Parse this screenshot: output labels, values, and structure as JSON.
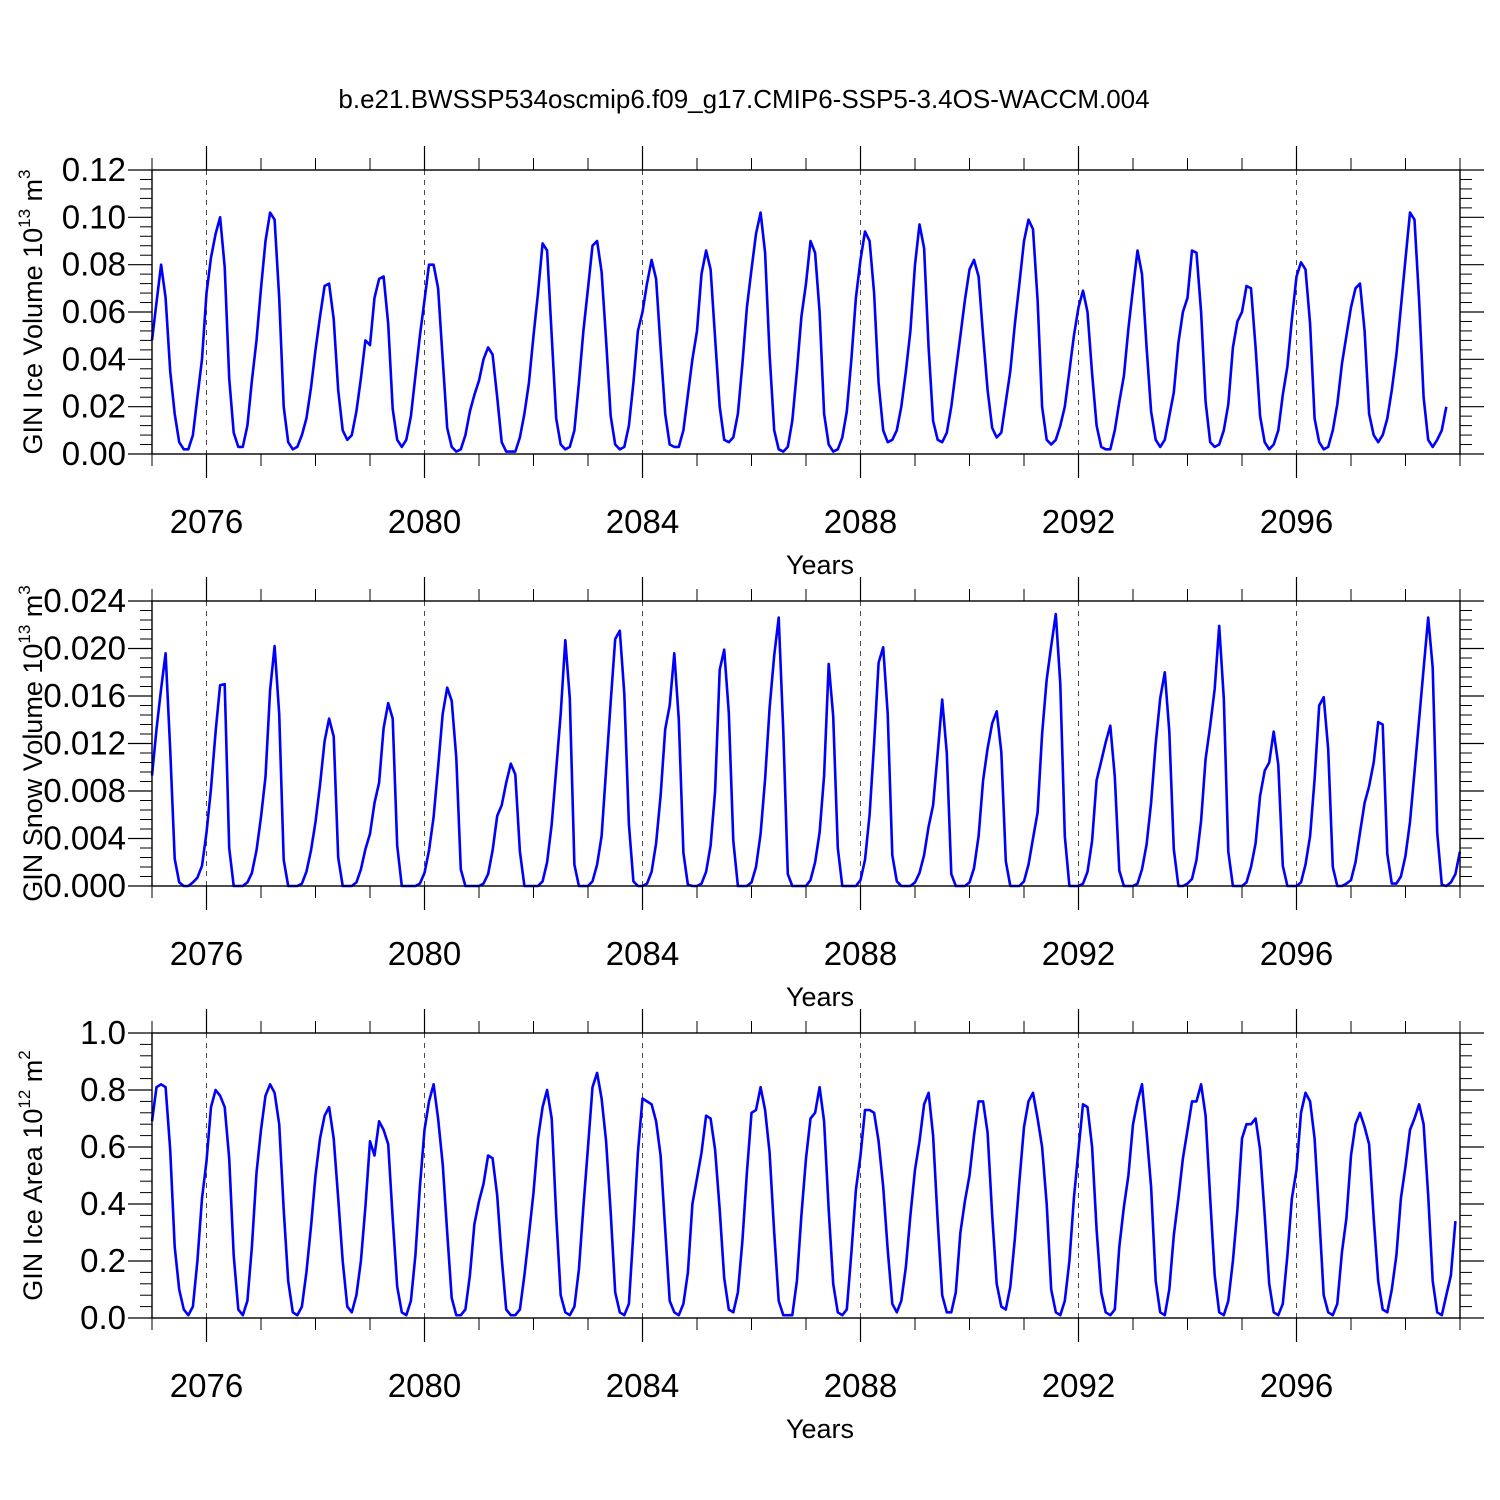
{
  "figure": {
    "title": "b.e21.BWSSP534oscmip6.f09_g17.CMIP6-SSP5-3.4OS-WACCM.004",
    "line_color": "#0000ff",
    "grid_color": "#000000"
  },
  "chart_data": [
    {
      "type": "line",
      "xlabel": "Years",
      "ylabel": {
        "base": "GIN Ice Volume 10",
        "exp1": "13",
        "mid": " m",
        "exp2": "3"
      },
      "xlim": [
        2075,
        2099
      ],
      "ylim": [
        0,
        0.12
      ],
      "yticks": [
        "0.00",
        "0.02",
        "0.04",
        "0.06",
        "0.08",
        "0.10",
        "0.12"
      ],
      "xticks": [
        "2076",
        "2080",
        "2084",
        "2088",
        "2092",
        "2096"
      ],
      "grid_x": [
        2076,
        2080,
        2084,
        2088,
        2092,
        2096
      ],
      "series": [
        {
          "x_start": 2075.0,
          "x_step": 0.08333,
          "values": [
            0.048,
            0.064,
            0.08,
            0.066,
            0.035,
            0.017,
            0.005,
            0.002,
            0.002,
            0.008,
            0.024,
            0.04,
            0.068,
            0.083,
            0.093,
            0.1,
            0.079,
            0.032,
            0.009,
            0.003,
            0.003,
            0.012,
            0.031,
            0.048,
            0.07,
            0.09,
            0.102,
            0.099,
            0.066,
            0.02,
            0.005,
            0.002,
            0.003,
            0.008,
            0.015,
            0.028,
            0.044,
            0.058,
            0.071,
            0.072,
            0.057,
            0.027,
            0.01,
            0.006,
            0.008,
            0.018,
            0.032,
            0.048,
            0.046,
            0.066,
            0.074,
            0.075,
            0.055,
            0.019,
            0.006,
            0.003,
            0.006,
            0.016,
            0.033,
            0.05,
            0.065,
            0.08,
            0.08,
            0.07,
            0.04,
            0.011,
            0.003,
            0.001,
            0.002,
            0.008,
            0.018,
            0.025,
            0.031,
            0.04,
            0.045,
            0.042,
            0.024,
            0.005,
            0.001,
            0.001,
            0.001,
            0.007,
            0.017,
            0.03,
            0.05,
            0.068,
            0.089,
            0.086,
            0.05,
            0.015,
            0.004,
            0.002,
            0.003,
            0.01,
            0.03,
            0.052,
            0.07,
            0.088,
            0.09,
            0.077,
            0.048,
            0.016,
            0.004,
            0.002,
            0.003,
            0.012,
            0.03,
            0.052,
            0.06,
            0.072,
            0.082,
            0.074,
            0.045,
            0.017,
            0.004,
            0.003,
            0.003,
            0.01,
            0.025,
            0.04,
            0.052,
            0.076,
            0.086,
            0.078,
            0.049,
            0.02,
            0.006,
            0.005,
            0.007,
            0.017,
            0.038,
            0.062,
            0.078,
            0.093,
            0.102,
            0.085,
            0.042,
            0.01,
            0.002,
            0.001,
            0.003,
            0.014,
            0.035,
            0.058,
            0.072,
            0.09,
            0.085,
            0.06,
            0.017,
            0.004,
            0.001,
            0.002,
            0.007,
            0.018,
            0.04,
            0.066,
            0.082,
            0.094,
            0.09,
            0.068,
            0.03,
            0.01,
            0.005,
            0.006,
            0.01,
            0.02,
            0.035,
            0.052,
            0.08,
            0.097,
            0.087,
            0.045,
            0.014,
            0.006,
            0.005,
            0.009,
            0.02,
            0.035,
            0.05,
            0.065,
            0.078,
            0.082,
            0.075,
            0.05,
            0.027,
            0.011,
            0.007,
            0.009,
            0.022,
            0.035,
            0.055,
            0.072,
            0.09,
            0.099,
            0.095,
            0.065,
            0.02,
            0.006,
            0.004,
            0.006,
            0.012,
            0.02,
            0.035,
            0.05,
            0.062,
            0.069,
            0.06,
            0.034,
            0.012,
            0.003,
            0.002,
            0.002,
            0.01,
            0.022,
            0.033,
            0.053,
            0.07,
            0.086,
            0.076,
            0.045,
            0.018,
            0.006,
            0.003,
            0.006,
            0.016,
            0.026,
            0.047,
            0.06,
            0.066,
            0.086,
            0.085,
            0.06,
            0.022,
            0.005,
            0.003,
            0.004,
            0.01,
            0.021,
            0.045,
            0.056,
            0.06,
            0.071,
            0.07,
            0.045,
            0.016,
            0.005,
            0.002,
            0.004,
            0.01,
            0.025,
            0.037,
            0.057,
            0.075,
            0.081,
            0.078,
            0.055,
            0.015,
            0.005,
            0.002,
            0.003,
            0.01,
            0.021,
            0.038,
            0.05,
            0.062,
            0.07,
            0.072,
            0.052,
            0.017,
            0.008,
            0.005,
            0.008,
            0.015,
            0.027,
            0.042,
            0.062,
            0.082,
            0.102,
            0.099,
            0.065,
            0.024,
            0.006,
            0.003,
            0.006,
            0.01,
            0.02
          ]
        }
      ]
    },
    {
      "type": "line",
      "xlabel": "Years",
      "ylabel": {
        "base": "GIN Snow Volume 10",
        "exp1": "13",
        "mid": " m",
        "exp2": "3"
      },
      "xlim": [
        2075,
        2099
      ],
      "ylim": [
        0,
        0.024
      ],
      "yticks": [
        "0.000",
        "0.004",
        "0.008",
        "0.012",
        "0.016",
        "0.020",
        "0.024"
      ],
      "xticks": [
        "2076",
        "2080",
        "2084",
        "2088",
        "2092",
        "2096"
      ],
      "grid_x": [
        2076,
        2080,
        2084,
        2088,
        2092,
        2096
      ],
      "series": [
        {
          "x_start": 2075.0,
          "x_step": 0.08333,
          "values": [
            0.0093,
            0.0132,
            0.0166,
            0.0196,
            0.0115,
            0.0023,
            0.0003,
            0.0,
            0.0,
            0.0003,
            0.0007,
            0.0017,
            0.0045,
            0.0082,
            0.013,
            0.0169,
            0.017,
            0.0032,
            0.0,
            0.0,
            0.0,
            0.0003,
            0.0011,
            0.003,
            0.0058,
            0.0092,
            0.0165,
            0.0202,
            0.0145,
            0.0022,
            0.0,
            0.0,
            0.0,
            0.0002,
            0.0012,
            0.003,
            0.0054,
            0.0085,
            0.0122,
            0.0141,
            0.0126,
            0.0024,
            0.0,
            0.0,
            0.0,
            0.0003,
            0.0014,
            0.0031,
            0.0044,
            0.007,
            0.0087,
            0.0133,
            0.0154,
            0.0141,
            0.0034,
            0.0,
            0.0,
            0.0,
            0.0,
            0.0002,
            0.0011,
            0.003,
            0.0058,
            0.01,
            0.0145,
            0.0167,
            0.0156,
            0.0108,
            0.0014,
            0.0,
            0.0,
            0.0,
            0.0,
            0.0002,
            0.001,
            0.003,
            0.0059,
            0.0068,
            0.0087,
            0.0103,
            0.0094,
            0.0029,
            0.0,
            0.0,
            0.0,
            0.0,
            0.0004,
            0.002,
            0.0052,
            0.0098,
            0.0145,
            0.0207,
            0.0158,
            0.0018,
            0.0,
            0.0,
            0.0,
            0.0004,
            0.0018,
            0.0042,
            0.0098,
            0.0155,
            0.0208,
            0.0215,
            0.0162,
            0.0052,
            0.0004,
            0.0,
            0.0,
            0.0002,
            0.0012,
            0.0036,
            0.0076,
            0.0132,
            0.0152,
            0.0196,
            0.014,
            0.0028,
            0.0001,
            0.0,
            0.0,
            0.0002,
            0.0012,
            0.0034,
            0.008,
            0.0182,
            0.0199,
            0.0146,
            0.0038,
            0.0,
            0.0,
            0.0,
            0.0003,
            0.0016,
            0.0044,
            0.009,
            0.015,
            0.0194,
            0.0226,
            0.013,
            0.001,
            0.0,
            0.0,
            0.0,
            0.0,
            0.0005,
            0.002,
            0.0045,
            0.0093,
            0.0187,
            0.0143,
            0.0032,
            0.0,
            0.0,
            0.0,
            0.0,
            0.0005,
            0.0022,
            0.006,
            0.012,
            0.0188,
            0.0201,
            0.0145,
            0.0026,
            0.0004,
            0.0,
            0.0,
            0.0,
            0.0003,
            0.0011,
            0.0026,
            0.005,
            0.0068,
            0.0112,
            0.0157,
            0.0112,
            0.001,
            0.0,
            0.0,
            0.0,
            0.0003,
            0.0015,
            0.0042,
            0.0089,
            0.0116,
            0.0137,
            0.0147,
            0.0113,
            0.0021,
            0.0,
            0.0,
            0.0,
            0.0004,
            0.0018,
            0.004,
            0.0062,
            0.0128,
            0.0174,
            0.0202,
            0.0229,
            0.017,
            0.0042,
            0.0,
            0.0,
            0.0,
            0.0002,
            0.0012,
            0.0038,
            0.0089,
            0.0105,
            0.0121,
            0.0135,
            0.0092,
            0.0013,
            0.0,
            0.0,
            0.0,
            0.0002,
            0.0014,
            0.0035,
            0.007,
            0.012,
            0.0158,
            0.018,
            0.013,
            0.0031,
            0.0,
            0.0,
            0.0002,
            0.0006,
            0.0022,
            0.0055,
            0.0107,
            0.0135,
            0.0166,
            0.0219,
            0.0158,
            0.0029,
            0.0,
            0.0,
            0.0,
            0.0003,
            0.0016,
            0.0036,
            0.0076,
            0.0097,
            0.0104,
            0.013,
            0.0102,
            0.0017,
            0.0,
            0.0,
            0.0,
            0.0003,
            0.0018,
            0.0042,
            0.009,
            0.0152,
            0.0159,
            0.0115,
            0.0016,
            0.0,
            0.0,
            0.0002,
            0.0005,
            0.002,
            0.0045,
            0.007,
            0.0084,
            0.0104,
            0.0138,
            0.0136,
            0.0027,
            0.0002,
            0.0002,
            0.0008,
            0.0025,
            0.0054,
            0.0096,
            0.014,
            0.0183,
            0.0226,
            0.0184,
            0.0045,
            0.0001,
            0.0,
            0.0003,
            0.001,
            0.0029
          ]
        }
      ]
    },
    {
      "type": "line",
      "xlabel": "Years",
      "ylabel": {
        "base": "GIN Ice Area 10",
        "exp1": "12",
        "mid": " m",
        "exp2": "2"
      },
      "xlim": [
        2075,
        2099
      ],
      "ylim": [
        0,
        1.0
      ],
      "yticks": [
        "0.0",
        "0.2",
        "0.4",
        "0.6",
        "0.8",
        "1.0"
      ],
      "xticks": [
        "2076",
        "2080",
        "2084",
        "2088",
        "2092",
        "2096"
      ],
      "grid_x": [
        2076,
        2080,
        2084,
        2088,
        2092,
        2096
      ],
      "series": [
        {
          "x_start": 2075.0,
          "x_step": 0.08333,
          "values": [
            0.69,
            0.81,
            0.82,
            0.81,
            0.59,
            0.25,
            0.1,
            0.03,
            0.01,
            0.04,
            0.2,
            0.42,
            0.55,
            0.74,
            0.8,
            0.78,
            0.74,
            0.56,
            0.22,
            0.03,
            0.01,
            0.06,
            0.25,
            0.51,
            0.66,
            0.78,
            0.82,
            0.79,
            0.68,
            0.38,
            0.13,
            0.02,
            0.01,
            0.04,
            0.16,
            0.32,
            0.5,
            0.63,
            0.71,
            0.74,
            0.63,
            0.42,
            0.2,
            0.04,
            0.02,
            0.08,
            0.2,
            0.39,
            0.62,
            0.57,
            0.69,
            0.66,
            0.61,
            0.35,
            0.11,
            0.02,
            0.01,
            0.06,
            0.22,
            0.46,
            0.66,
            0.76,
            0.82,
            0.7,
            0.54,
            0.3,
            0.07,
            0.01,
            0.01,
            0.03,
            0.15,
            0.33,
            0.41,
            0.47,
            0.57,
            0.56,
            0.43,
            0.21,
            0.03,
            0.01,
            0.01,
            0.03,
            0.15,
            0.29,
            0.44,
            0.63,
            0.74,
            0.8,
            0.7,
            0.36,
            0.08,
            0.02,
            0.01,
            0.04,
            0.17,
            0.39,
            0.6,
            0.81,
            0.86,
            0.77,
            0.62,
            0.37,
            0.09,
            0.02,
            0.01,
            0.05,
            0.3,
            0.58,
            0.77,
            0.76,
            0.75,
            0.69,
            0.57,
            0.31,
            0.06,
            0.02,
            0.01,
            0.05,
            0.16,
            0.4,
            0.49,
            0.58,
            0.71,
            0.7,
            0.59,
            0.38,
            0.14,
            0.03,
            0.02,
            0.09,
            0.27,
            0.51,
            0.72,
            0.73,
            0.81,
            0.73,
            0.58,
            0.3,
            0.06,
            0.01,
            0.01,
            0.01,
            0.13,
            0.36,
            0.56,
            0.7,
            0.72,
            0.81,
            0.69,
            0.38,
            0.12,
            0.02,
            0.01,
            0.03,
            0.23,
            0.45,
            0.57,
            0.73,
            0.73,
            0.72,
            0.62,
            0.46,
            0.24,
            0.05,
            0.02,
            0.06,
            0.18,
            0.36,
            0.52,
            0.62,
            0.75,
            0.79,
            0.64,
            0.34,
            0.08,
            0.02,
            0.02,
            0.09,
            0.3,
            0.41,
            0.5,
            0.64,
            0.76,
            0.76,
            0.65,
            0.36,
            0.12,
            0.04,
            0.03,
            0.11,
            0.28,
            0.48,
            0.67,
            0.76,
            0.79,
            0.7,
            0.6,
            0.4,
            0.1,
            0.02,
            0.01,
            0.06,
            0.2,
            0.42,
            0.59,
            0.75,
            0.74,
            0.6,
            0.31,
            0.09,
            0.02,
            0.01,
            0.03,
            0.25,
            0.39,
            0.5,
            0.68,
            0.76,
            0.82,
            0.65,
            0.46,
            0.13,
            0.02,
            0.01,
            0.1,
            0.29,
            0.42,
            0.56,
            0.66,
            0.76,
            0.76,
            0.82,
            0.71,
            0.42,
            0.15,
            0.02,
            0.01,
            0.06,
            0.2,
            0.38,
            0.63,
            0.68,
            0.68,
            0.7,
            0.59,
            0.36,
            0.12,
            0.02,
            0.01,
            0.05,
            0.22,
            0.42,
            0.52,
            0.72,
            0.79,
            0.76,
            0.63,
            0.36,
            0.08,
            0.02,
            0.01,
            0.05,
            0.23,
            0.35,
            0.57,
            0.68,
            0.72,
            0.67,
            0.61,
            0.35,
            0.13,
            0.03,
            0.02,
            0.1,
            0.22,
            0.42,
            0.53,
            0.66,
            0.7,
            0.75,
            0.68,
            0.43,
            0.13,
            0.02,
            0.01,
            0.08,
            0.15,
            0.34
          ]
        }
      ]
    }
  ]
}
